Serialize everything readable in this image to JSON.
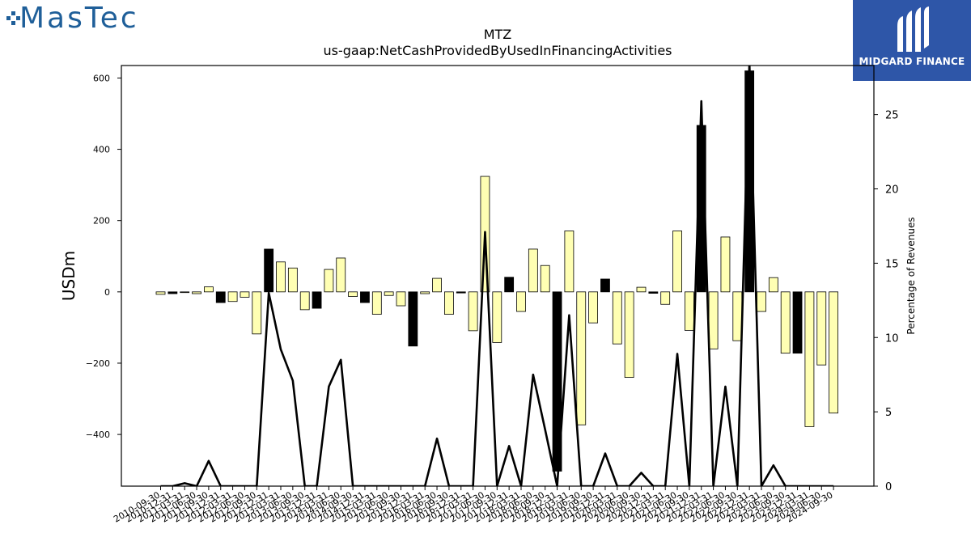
{
  "branding": {
    "left_logo_text": "MasTec",
    "left_logo_color": "#1f5f99",
    "right_logo_text": "MIDGARD FINANCE",
    "right_logo_bg": "#2e56a8"
  },
  "chart_data": {
    "type": "bar",
    "title": "MTZ",
    "subtitle": "us-gaap:NetCashProvidedByUsedInFinancingActivities",
    "ylabel": "USDm",
    "ylabel_right": "Percentage of Revenues",
    "ylim": [
      -545,
      635
    ],
    "ylim_right": [
      0,
      28.3
    ],
    "yticks": [
      -400,
      -200,
      0,
      200,
      400,
      600
    ],
    "yticks_right": [
      0,
      5,
      10,
      15,
      20,
      25
    ],
    "colors": {
      "quarterly": "#ffffb3",
      "annual": "#000000",
      "line": "#000000"
    },
    "categories": [
      "2010-09-30",
      "2010-12-31",
      "2011-03-31",
      "2011-06-30",
      "2011-09-30",
      "2011-12-31",
      "2012-03-31",
      "2012-06-30",
      "2012-09-30",
      "2012-12-31",
      "2013-03-31",
      "2013-06-30",
      "2013-09-30",
      "2013-12-31",
      "2014-03-31",
      "2014-06-30",
      "2014-09-30",
      "2014-12-31",
      "2015-03-31",
      "2015-06-30",
      "2015-09-30",
      "2015-12-31",
      "2016-03-31",
      "2016-06-30",
      "2016-09-30",
      "2016-12-31",
      "2017-03-31",
      "2017-06-30",
      "2017-09-30",
      "2017-12-31",
      "2018-03-31",
      "2018-06-30",
      "2018-09-30",
      "2018-12-31",
      "2019-03-31",
      "2019-06-30",
      "2019-09-30",
      "2019-12-31",
      "2020-03-31",
      "2020-06-30",
      "2020-09-30",
      "2020-12-31",
      "2021-03-31",
      "2021-06-30",
      "2021-09-30",
      "2021-12-31",
      "2022-03-31",
      "2022-06-30",
      "2022-09-30",
      "2022-12-31",
      "2023-03-31",
      "2023-06-30",
      "2023-09-30",
      "2023-12-31",
      "2024-03-31",
      "2024-06-30",
      "2024-09-30"
    ],
    "values": [
      -7,
      -5,
      -2,
      -5,
      14,
      -30,
      -27,
      -15,
      -118,
      120,
      84,
      67,
      -50,
      -46,
      63,
      95,
      -13,
      -30,
      -63,
      -10,
      -39,
      -152,
      -5,
      38,
      -63,
      -3,
      -109,
      324,
      -142,
      41,
      -55,
      120,
      74,
      -503,
      171,
      -373,
      -87,
      36,
      -146,
      -240,
      13,
      -4,
      -35,
      171,
      -108,
      467,
      -160,
      154,
      -137,
      620,
      -55,
      40,
      -172,
      -172,
      -378,
      -205,
      -340
    ],
    "is_annual": [
      false,
      true,
      false,
      false,
      false,
      true,
      false,
      false,
      false,
      true,
      false,
      false,
      false,
      true,
      false,
      false,
      false,
      true,
      false,
      false,
      false,
      true,
      false,
      false,
      false,
      true,
      false,
      false,
      false,
      true,
      false,
      false,
      false,
      true,
      false,
      false,
      false,
      true,
      false,
      false,
      false,
      true,
      false,
      false,
      false,
      true,
      false,
      false,
      false,
      true,
      false,
      false,
      false,
      true,
      false,
      false,
      false
    ],
    "pct_revenue": [
      0,
      0,
      0.2,
      0,
      1.7,
      0,
      0,
      0,
      0,
      13,
      9.2,
      7.1,
      0,
      0,
      6.7,
      8.5,
      0,
      0,
      0,
      0,
      0,
      0,
      0,
      3.2,
      0,
      0,
      0,
      17.1,
      0,
      2.7,
      0,
      7.5,
      3.8,
      0,
      11.5,
      0,
      0,
      2.2,
      0,
      0,
      0.9,
      0,
      0,
      8.9,
      0,
      25.9,
      0,
      6.7,
      0,
      28.5,
      0,
      1.4,
      0,
      0,
      0,
      0,
      0
    ]
  }
}
